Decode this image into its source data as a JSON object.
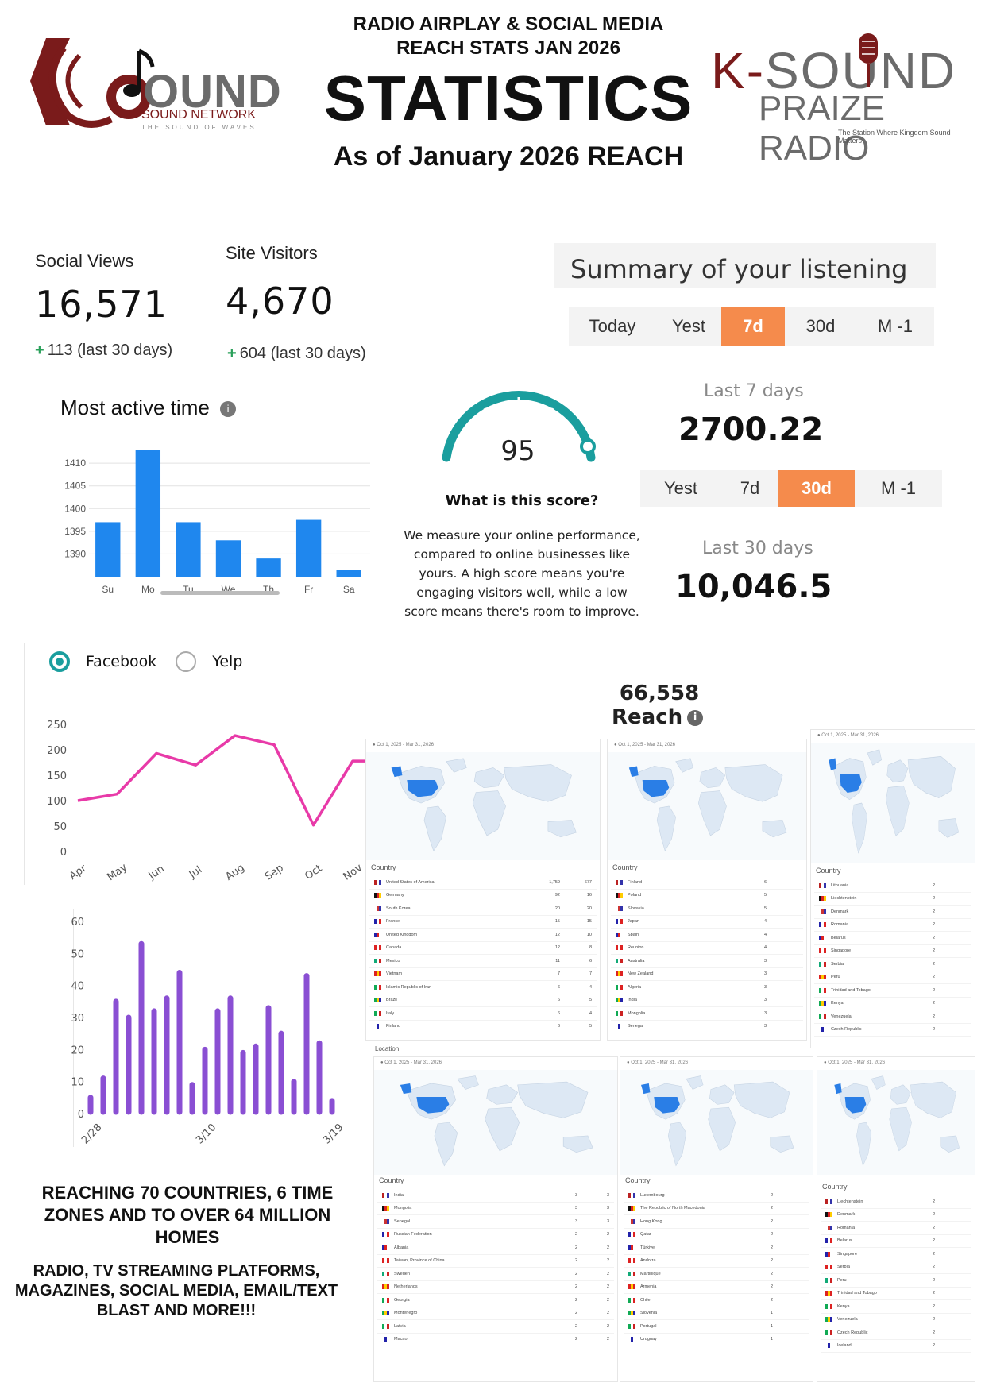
{
  "header": {
    "subtitle_line1": "RADIO AIRPLAY & SOCIAL MEDIA",
    "subtitle_line2": "REACH STATS JAN 2026",
    "title": "STATISTICS",
    "as_of": "As of January 2026 REACH"
  },
  "logos": {
    "left": {
      "word": "OUND",
      "network": "K-SOUND NETWORK",
      "tagline": "THE SOUND OF WAVES"
    },
    "right": {
      "k": "K-",
      "word": "SOUND",
      "sub": "PRAIZE RADIO",
      "tagline": "The Station Where Kingdom Sound Matters"
    }
  },
  "stats": {
    "social": {
      "label": "Social Views",
      "value": "16,571",
      "delta": "113 (last 30 days)"
    },
    "site": {
      "label": "Site Visitors",
      "value": "4,670",
      "delta": "604 (last 30 days)"
    }
  },
  "summary": {
    "title": "Summary of your listening",
    "tabs1": [
      "Today",
      "Yest",
      "7d",
      "30d",
      "M -1"
    ],
    "tabs1_active": 2,
    "last7_label": "Last 7 days",
    "last7_value": "2700.22",
    "tabs2": [
      "Yest",
      "7d",
      "30d",
      "M -1"
    ],
    "tabs2_active": 2,
    "last30_label": "Last 30 days",
    "last30_value": "10,046.5"
  },
  "score": {
    "value": "95",
    "question": "What is this score?",
    "desc": "We measure your online performance, compared to online businesses like yours. A high score means you're engaging visitors well, while a low score means there's room to improve.",
    "accent": "#1a9e9e"
  },
  "most_active": {
    "title": "Most active time",
    "info_icon": "info-icon"
  },
  "radio": {
    "option1": "Facebook",
    "option2": "Yelp",
    "selected": "Facebook"
  },
  "reach": {
    "value": "66,558",
    "label": "Reach"
  },
  "chart_data": [
    {
      "type": "bar",
      "title": "Most active time",
      "categories": [
        "Su",
        "Mo",
        "Tu",
        "We",
        "Th",
        "Fr",
        "Sa"
      ],
      "values": [
        1397,
        1413,
        1397,
        1393,
        1389,
        1397.5,
        1386.5
      ],
      "yticks": [
        1390,
        1395,
        1400,
        1405,
        1410
      ],
      "ylim": [
        1385,
        1413
      ],
      "color": "#1f87ee"
    },
    {
      "type": "line",
      "categories": [
        "Apr",
        "May",
        "Jun",
        "Jul",
        "Aug",
        "Sep",
        "Oct",
        "Nov"
      ],
      "values": [
        100,
        113,
        193,
        170,
        228,
        210,
        52,
        178
      ],
      "extra_end_value": 178,
      "yticks": [
        0,
        50,
        100,
        150,
        200,
        250
      ],
      "ylim": [
        0,
        250
      ],
      "color": "#e83aa8"
    },
    {
      "type": "bar",
      "xticks": [
        "2/28",
        "3/10",
        "3/19"
      ],
      "values": [
        5,
        11,
        35,
        30,
        53,
        32,
        36,
        44,
        9,
        20,
        32,
        36,
        19,
        21,
        33,
        25,
        10,
        43,
        22,
        4
      ],
      "yticks": [
        0,
        10,
        20,
        30,
        40,
        50,
        60
      ],
      "ylim": [
        0,
        60
      ],
      "color": "#8a4fd3"
    }
  ],
  "maps": {
    "date_range": "Oct 1, 2025 - Mar 31, 2026",
    "country_label": "Country",
    "location_label": "Location",
    "panels": [
      {
        "rows": [
          [
            "United States of America",
            "1,759",
            "677"
          ],
          [
            "Germany",
            "92",
            "16"
          ],
          [
            "South Korea",
            "20",
            "20"
          ],
          [
            "France",
            "15",
            "15"
          ],
          [
            "United Kingdom",
            "12",
            "10"
          ],
          [
            "Canada",
            "12",
            "8"
          ],
          [
            "Mexico",
            "11",
            "6"
          ],
          [
            "Vietnam",
            "7",
            "7"
          ],
          [
            "Islamic Republic of Iran",
            "6",
            "4"
          ],
          [
            "Brazil",
            "6",
            "5"
          ],
          [
            "Italy",
            "6",
            "4"
          ],
          [
            "Finland",
            "6",
            "5"
          ]
        ]
      },
      {
        "rows": [
          [
            "Finland",
            "6",
            ""
          ],
          [
            "Poland",
            "5",
            ""
          ],
          [
            "Slovakia",
            "5",
            ""
          ],
          [
            "Japan",
            "4",
            ""
          ],
          [
            "Spain",
            "4",
            ""
          ],
          [
            "Reunion",
            "4",
            ""
          ],
          [
            "Australia",
            "3",
            ""
          ],
          [
            "New Zealand",
            "3",
            ""
          ],
          [
            "Algeria",
            "3",
            ""
          ],
          [
            "India",
            "3",
            ""
          ],
          [
            "Mongolia",
            "3",
            ""
          ],
          [
            "Senegal",
            "3",
            ""
          ]
        ]
      },
      {
        "rows": [
          [
            "Lithuania",
            "2",
            ""
          ],
          [
            "Liechtenstein",
            "2",
            ""
          ],
          [
            "Denmark",
            "2",
            ""
          ],
          [
            "Romania",
            "2",
            ""
          ],
          [
            "Belarus",
            "2",
            ""
          ],
          [
            "Singapore",
            "2",
            ""
          ],
          [
            "Serbia",
            "2",
            ""
          ],
          [
            "Peru",
            "2",
            ""
          ],
          [
            "Trinidad and Tobago",
            "2",
            ""
          ],
          [
            "Kenya",
            "2",
            ""
          ],
          [
            "Venezuela",
            "2",
            ""
          ],
          [
            "Czech Republic",
            "2",
            ""
          ]
        ]
      },
      {
        "rows": [
          [
            "India",
            "3",
            "3"
          ],
          [
            "Mongolia",
            "3",
            "3"
          ],
          [
            "Senegal",
            "3",
            "3"
          ],
          [
            "Russian Federation",
            "2",
            "2"
          ],
          [
            "Albania",
            "2",
            "2"
          ],
          [
            "Taiwan, Province of China",
            "2",
            "2"
          ],
          [
            "Sweden",
            "2",
            "2"
          ],
          [
            "Netherlands",
            "2",
            "2"
          ],
          [
            "Georgia",
            "2",
            "2"
          ],
          [
            "Montenegro",
            "2",
            "2"
          ],
          [
            "Latvia",
            "2",
            "2"
          ],
          [
            "Macao",
            "2",
            "2"
          ]
        ]
      },
      {
        "rows": [
          [
            "Luxembourg",
            "2",
            ""
          ],
          [
            "The Republic of North Macedonia",
            "2",
            ""
          ],
          [
            "Hong Kong",
            "2",
            ""
          ],
          [
            "Qatar",
            "2",
            ""
          ],
          [
            "Türkiye",
            "2",
            ""
          ],
          [
            "Andorra",
            "2",
            ""
          ],
          [
            "Martinique",
            "2",
            ""
          ],
          [
            "Armenia",
            "2",
            ""
          ],
          [
            "Chile",
            "2",
            ""
          ],
          [
            "Slovenia",
            "1",
            ""
          ],
          [
            "Portugal",
            "1",
            ""
          ],
          [
            "Uruguay",
            "1",
            ""
          ]
        ]
      },
      {
        "rows": [
          [
            "Liechtenstein",
            "2",
            ""
          ],
          [
            "Denmark",
            "2",
            ""
          ],
          [
            "Romania",
            "2",
            ""
          ],
          [
            "Belarus",
            "2",
            ""
          ],
          [
            "Singapore",
            "2",
            ""
          ],
          [
            "Serbia",
            "2",
            ""
          ],
          [
            "Peru",
            "2",
            ""
          ],
          [
            "Trinidad and Tobago",
            "2",
            ""
          ],
          [
            "Kenya",
            "2",
            ""
          ],
          [
            "Venezuela",
            "2",
            ""
          ],
          [
            "Czech Republic",
            "2",
            ""
          ],
          [
            "Iceland",
            "2",
            ""
          ]
        ]
      }
    ]
  },
  "footer": {
    "line1": "REACHING 70 COUNTRIES, 6 TIME ZONES AND TO OVER 64 MILLION HOMES",
    "line2": "RADIO, TV STREAMING PLATFORMS, MAGAZINES, SOCIAL MEDIA, EMAIL/TEXT BLAST AND MORE!!!"
  }
}
